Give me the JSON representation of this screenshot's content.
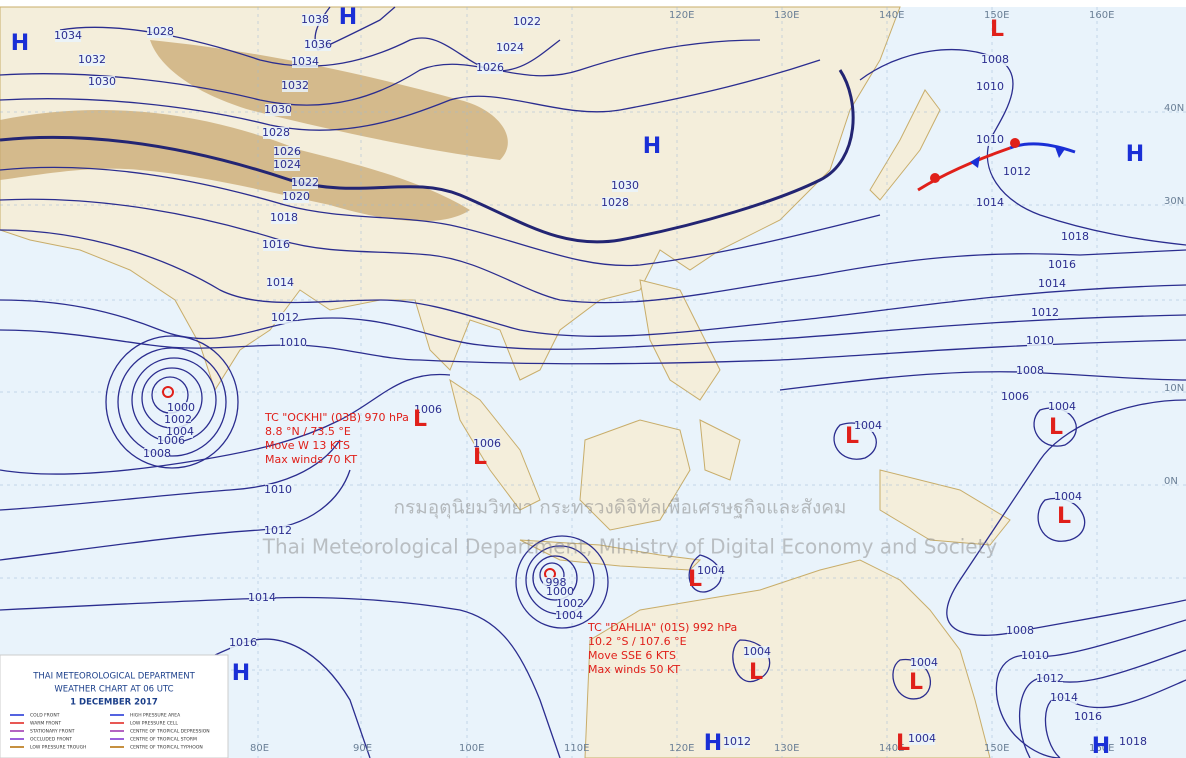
{
  "header": {
    "title": "THAI METEOROLOGICAL DEPARTMENT",
    "subtitle": "WEATHER CHART AT  06  UTC",
    "date": "1 DECEMBER 2017"
  },
  "legend": {
    "items": [
      "COLD FRONT",
      "WARM FRONT",
      "STATIONARY FRONT",
      "OCCLUDED FRONT",
      "LOW PRESSURE TROUGH",
      "HIGH PRESSURE AREA",
      "LOW PRESSURE CELL",
      "CENTRE OF TROPICAL DEPRESSION",
      "CENTRE OF TROPICAL STORM",
      "CENTRE OF TROPICAL TYPHOON"
    ]
  },
  "longitudes": [
    "80E",
    "90E",
    "100E",
    "110E",
    "120E",
    "130E",
    "140E",
    "150E",
    "160E"
  ],
  "latitudes": [
    "40N",
    "30N",
    "10N",
    "0N"
  ],
  "pressure_centers": [
    "H",
    "H",
    "H",
    "H",
    "H",
    "H",
    "H",
    "L",
    "L",
    "L",
    "L",
    "L",
    "L",
    "L",
    "L",
    "L",
    "L"
  ],
  "isobar_labels": [
    "1038",
    "1036",
    "1034",
    "1032",
    "1030",
    "1028",
    "1026",
    "1024",
    "1022",
    "1020",
    "1018",
    "1016",
    "1014",
    "1012",
    "1010",
    "1034",
    "1032",
    "1030",
    "1028",
    "1026",
    "1024",
    "1022",
    "1030",
    "1028",
    "1010",
    "1012",
    "1014",
    "1016",
    "1018",
    "1014",
    "1012",
    "1010",
    "1008",
    "1006",
    "1008",
    "1010",
    "1004",
    "1004",
    "1004",
    "1000",
    "1002",
    "1004",
    "1006",
    "1008",
    "1006",
    "1006",
    "1010",
    "1012",
    "1014",
    "1016",
    "998",
    "1000",
    "1002",
    "1004",
    "1004",
    "1004",
    "1004",
    "1004",
    "1008",
    "1010",
    "1012",
    "1014",
    "1016",
    "1018",
    "1012"
  ],
  "storms": [
    {
      "lines": [
        "TC \"OCKHI\" (03B) 970 hPa",
        "8.8 °N / 73.5 °E",
        "Move W 13 KTS",
        "Max winds 70 KT"
      ]
    },
    {
      "lines": [
        "TC \"DAHLIA\" (01S) 992 hPa",
        "10.2 °S / 107.6 °E",
        "Move SSE 6 KTS",
        "Max winds 50 KT"
      ]
    }
  ],
  "watermark": {
    "thai": "กรมอุตุนิยมวิทยา กระทรวงดิจิทัลเพื่อเศรษฐกิจและสังคม",
    "english": "Thai Meteorological Department, Ministry of Digital Economy and Society"
  }
}
